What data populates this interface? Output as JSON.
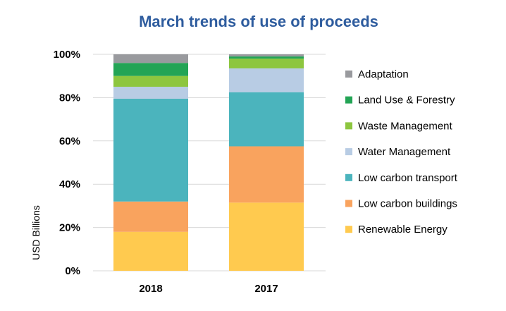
{
  "chart_data": {
    "type": "bar",
    "stacked": true,
    "title": "March trends of use of proceeds",
    "xlabel": "",
    "ylabel": "USD Billions",
    "ylim": [
      0,
      100
    ],
    "yticks": [
      "0%",
      "20%",
      "40%",
      "60%",
      "80%",
      "100%"
    ],
    "grid": true,
    "legend_position": "right",
    "categories": [
      "2018",
      "2017"
    ],
    "series": [
      {
        "name": "Renewable Energy",
        "color": "#FFCA4F",
        "values": [
          18,
          31.5
        ]
      },
      {
        "name": "Low carbon buildings",
        "color": "#F9A35E",
        "values": [
          14,
          26
        ]
      },
      {
        "name": "Low carbon transport",
        "color": "#4BB4BD",
        "values": [
          47.5,
          25
        ]
      },
      {
        "name": "Water Management",
        "color": "#B8CCE4",
        "values": [
          5.5,
          11
        ]
      },
      {
        "name": "Waste Management",
        "color": "#8DC63F",
        "values": [
          5,
          4.5
        ]
      },
      {
        "name": "Land Use & Forestry",
        "color": "#23A455",
        "values": [
          6,
          1
        ]
      },
      {
        "name": "Adaptation",
        "color": "#999A9E",
        "values": [
          4,
          1
        ]
      }
    ],
    "legend_order": [
      "Adaptation",
      "Land Use & Forestry",
      "Waste Management",
      "Water Management",
      "Low carbon transport",
      "Low carbon buildings",
      "Renewable Energy"
    ]
  }
}
